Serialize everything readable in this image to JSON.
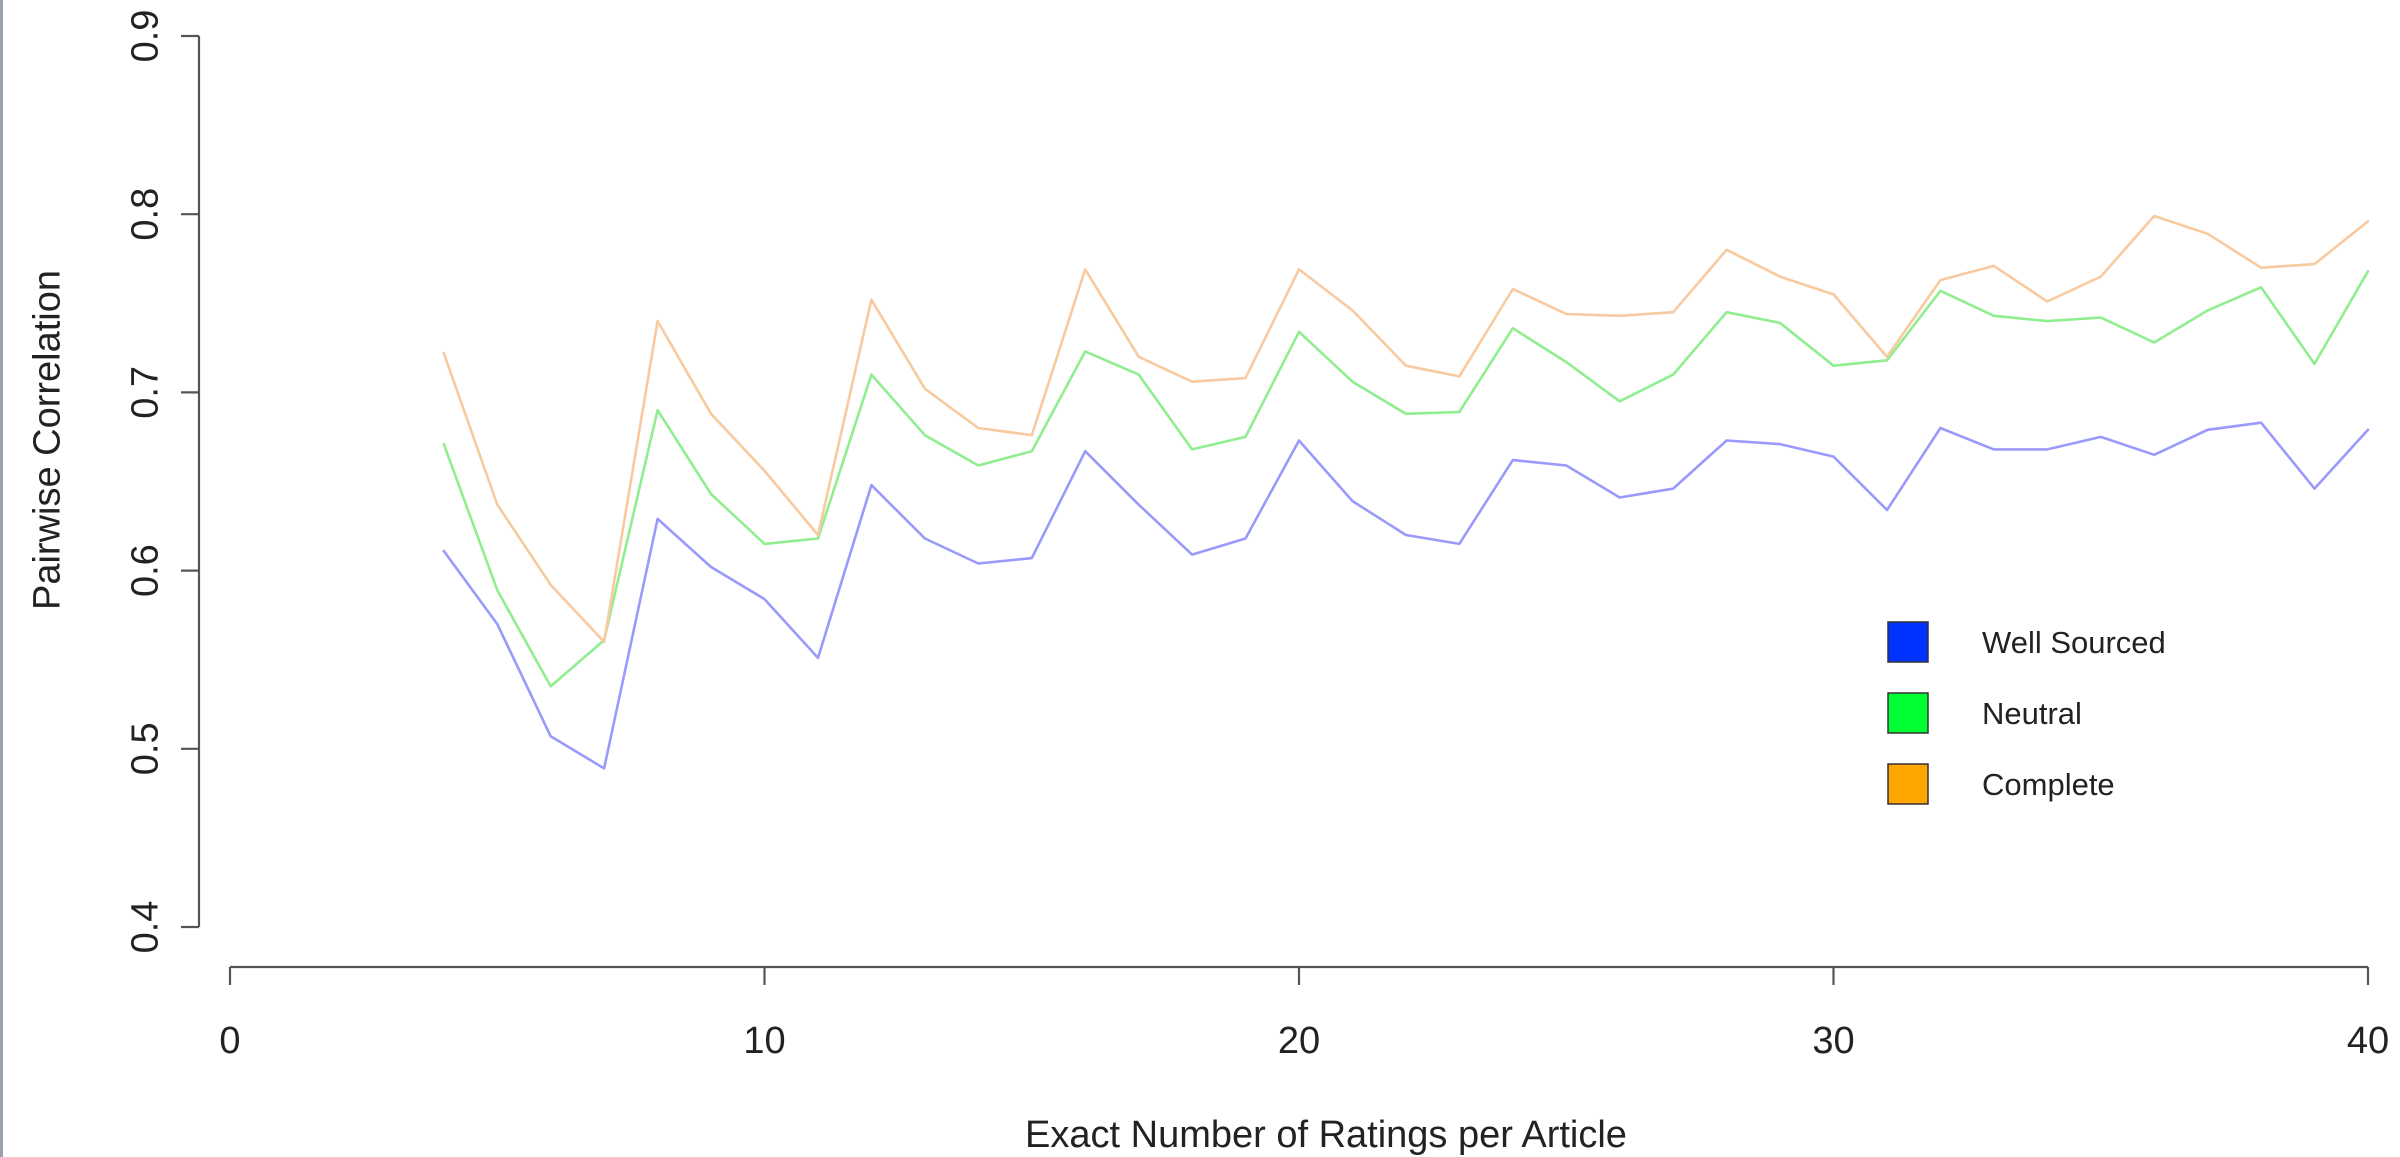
{
  "chart_data": {
    "type": "line",
    "xlabel": "Exact Number of Ratings per Article",
    "ylabel": "Pairwise Correlation",
    "xlim": [
      0,
      40
    ],
    "ylim": [
      0.4,
      0.9
    ],
    "xticks": [
      "0",
      "10",
      "20",
      "30",
      "40"
    ],
    "yticks": [
      "0.4",
      "0.5",
      "0.6",
      "0.7",
      "0.8",
      "0.9"
    ],
    "grid": false,
    "legend_position": "right",
    "x": [
      4,
      5,
      6,
      7,
      8,
      9,
      10,
      11,
      12,
      13,
      14,
      15,
      16,
      17,
      18,
      19,
      20,
      21,
      22,
      23,
      24,
      25,
      26,
      27,
      28,
      29,
      30,
      31,
      32,
      33,
      34,
      35,
      36,
      37,
      38,
      39,
      40
    ],
    "series": [
      {
        "name": "Well Sourced",
        "legend_color": "#0033ff",
        "line_color": "#9a9afc",
        "values": [
          0.611,
          0.57,
          0.507,
          0.489,
          0.629,
          0.602,
          0.584,
          0.551,
          0.648,
          0.618,
          0.604,
          0.607,
          0.667,
          0.637,
          0.609,
          0.618,
          0.673,
          0.639,
          0.62,
          0.615,
          0.662,
          0.659,
          0.641,
          0.646,
          0.673,
          0.671,
          0.664,
          0.634,
          0.68,
          0.668,
          0.668,
          0.675,
          0.665,
          0.679,
          0.683,
          0.646,
          0.679
        ]
      },
      {
        "name": "Neutral",
        "legend_color": "#00ff33",
        "line_color": "#90ee90",
        "values": [
          0.671,
          0.589,
          0.535,
          0.561,
          0.69,
          0.643,
          0.615,
          0.618,
          0.71,
          0.676,
          0.659,
          0.667,
          0.723,
          0.71,
          0.668,
          0.675,
          0.734,
          0.706,
          0.688,
          0.689,
          0.736,
          0.717,
          0.695,
          0.71,
          0.745,
          0.739,
          0.715,
          0.718,
          0.757,
          0.743,
          0.74,
          0.742,
          0.728,
          0.746,
          0.759,
          0.716,
          0.768
        ]
      },
      {
        "name": "Complete",
        "legend_color": "#ffa500",
        "line_color": "#f9c9a0",
        "values": [
          0.722,
          0.637,
          0.592,
          0.56,
          0.74,
          0.688,
          0.656,
          0.62,
          0.752,
          0.702,
          0.68,
          0.676,
          0.769,
          0.72,
          0.706,
          0.708,
          0.769,
          0.746,
          0.715,
          0.709,
          0.758,
          0.744,
          0.743,
          0.745,
          0.78,
          0.765,
          0.755,
          0.72,
          0.763,
          0.771,
          0.751,
          0.765,
          0.799,
          0.789,
          0.77,
          0.772,
          0.796
        ]
      }
    ]
  }
}
